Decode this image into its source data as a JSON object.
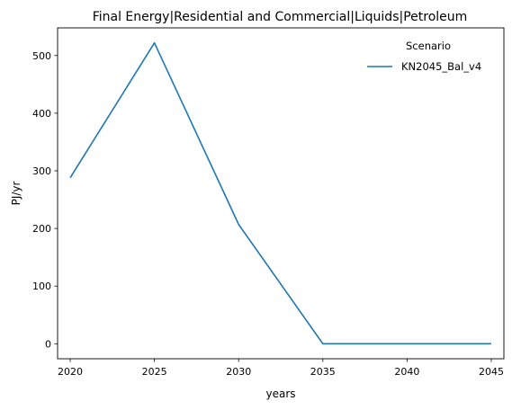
{
  "chart_data": {
    "type": "line",
    "title": "Final Energy|Residential and Commercial|Liquids|Petroleum",
    "xlabel": "years",
    "ylabel": "PJ/yr",
    "x": [
      2020,
      2025,
      2030,
      2035,
      2040,
      2045
    ],
    "xticks": [
      "2020",
      "2025",
      "2030",
      "2035",
      "2040",
      "2045"
    ],
    "yticks": [
      "0",
      "100",
      "200",
      "300",
      "400",
      "500"
    ],
    "xlim": [
      2019.25,
      2045.75
    ],
    "ylim": [
      -26,
      548
    ],
    "grid": false,
    "legend": {
      "title": "Scenario",
      "placement": "upper-right"
    },
    "series": [
      {
        "name": "KN2045_Bal_v4",
        "color": "#1f77b4",
        "values": [
          288,
          522,
          207,
          0,
          0,
          0
        ]
      }
    ]
  }
}
